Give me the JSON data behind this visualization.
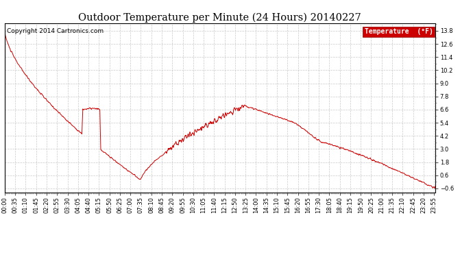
{
  "title": "Outdoor Temperature per Minute (24 Hours) 20140227",
  "copyright": "Copyright 2014 Cartronics.com",
  "legend_label": "Temperature  (°F)",
  "yticks": [
    -0.6,
    0.6,
    1.8,
    3.0,
    4.2,
    5.4,
    6.6,
    7.8,
    9.0,
    10.2,
    11.4,
    12.6,
    13.8
  ],
  "ylim": [
    -1.0,
    14.5
  ],
  "line_color": "#cc0000",
  "background_color": "#ffffff",
  "grid_color": "#bbbbbb",
  "legend_bg": "#cc0000",
  "legend_text_color": "#ffffff",
  "title_fontsize": 10.5,
  "tick_fontsize": 6,
  "copyright_fontsize": 6.5
}
